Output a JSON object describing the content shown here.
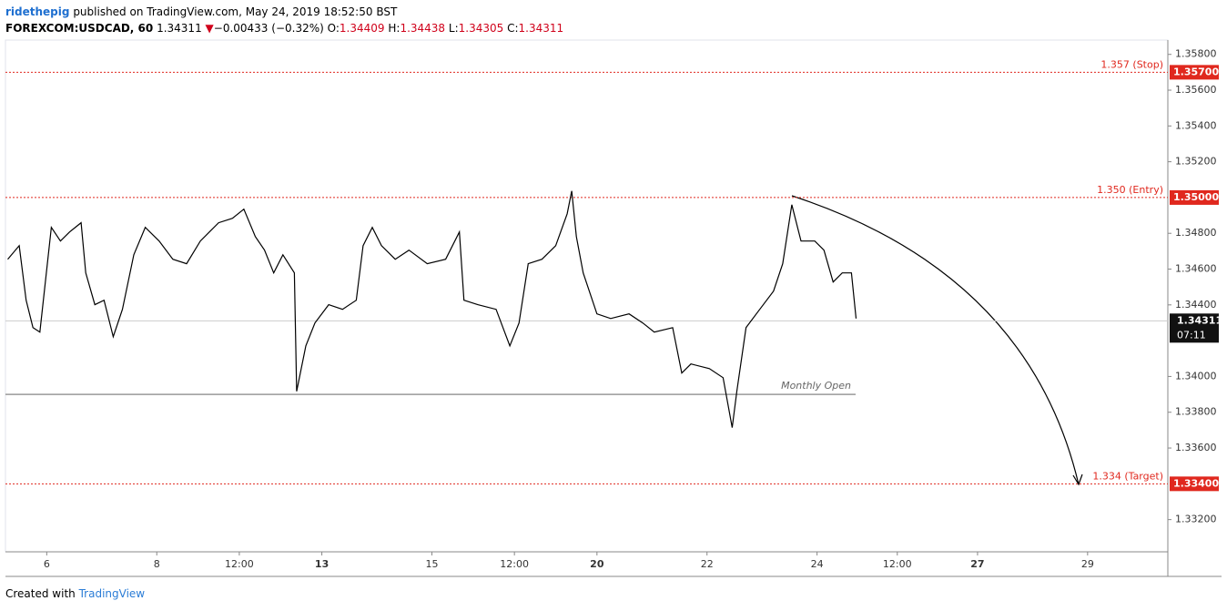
{
  "header": {
    "author": "ridethepig",
    "published": "published on TradingView.com, May 24, 2019 18:52:50 BST"
  },
  "footer": {
    "created": "Created with",
    "brand": "TradingView"
  },
  "chart_data": {
    "type": "line",
    "symbol": "FOREXCOM:USDCAD, 60",
    "last": 1.34311,
    "direction": "▼",
    "change": "−0.00433 (−0.32%)",
    "ohlc": [
      {
        "key": "O:",
        "value": "1.34409"
      },
      {
        "key": "H:",
        "value": "1.34438"
      },
      {
        "key": "L:",
        "value": "1.34305"
      },
      {
        "key": "C:",
        "value": "1.34311"
      }
    ],
    "countdown": "07:11",
    "color": "#000000",
    "x": [
      -17,
      -12,
      -9,
      -6,
      -3,
      2,
      6,
      10,
      15,
      17,
      21,
      25,
      29,
      33,
      38,
      43,
      49,
      55,
      61,
      67,
      75,
      81,
      86,
      91,
      95,
      99,
      103,
      108,
      109,
      113,
      117,
      123,
      129,
      135,
      138,
      142,
      146,
      152,
      158,
      166,
      174,
      180,
      182,
      188,
      196,
      202,
      206,
      210,
      216,
      222,
      227,
      229,
      231,
      234,
      240,
      246,
      254,
      260,
      265,
      273,
      277,
      281,
      289,
      295,
      299,
      301,
      305,
      311,
      317,
      321,
      325,
      329,
      335,
      339,
      343,
      347,
      351,
      353
    ],
    "values": [
      1.34655,
      1.34731,
      1.34426,
      1.34273,
      1.34248,
      1.34833,
      1.34757,
      1.34808,
      1.34859,
      1.34579,
      1.34401,
      1.34426,
      1.34222,
      1.34375,
      1.3468,
      1.34833,
      1.34757,
      1.34655,
      1.3463,
      1.34757,
      1.34859,
      1.34884,
      1.34935,
      1.34782,
      1.34706,
      1.34579,
      1.3468,
      1.34579,
      1.33917,
      1.34171,
      1.34299,
      1.34401,
      1.34375,
      1.34426,
      1.34731,
      1.34833,
      1.34731,
      1.34655,
      1.34706,
      1.3463,
      1.34655,
      1.34808,
      1.34426,
      1.34401,
      1.34375,
      1.34171,
      1.34299,
      1.3463,
      1.34655,
      1.34731,
      1.34909,
      1.35037,
      1.34782,
      1.34579,
      1.3435,
      1.34324,
      1.3435,
      1.34299,
      1.34248,
      1.34273,
      1.34019,
      1.3407,
      1.34044,
      1.33993,
      1.33714,
      1.33917,
      1.34273,
      1.34375,
      1.34477,
      1.3463,
      1.3496,
      1.34757,
      1.34757,
      1.34706,
      1.34528,
      1.34579,
      1.34579,
      1.34324
    ],
    "levels": [
      {
        "value": 1.357,
        "label": "1.357 (Stop)",
        "tag": "1.35700"
      },
      {
        "value": 1.35,
        "label": "1.350 (Entry)",
        "tag": "1.35000"
      },
      {
        "value": 1.334,
        "label": "1.334 (Target)",
        "tag": "1.33400"
      }
    ],
    "monthly_open": {
      "value": 1.339,
      "label": "Monthly Open"
    },
    "xlim": [
      -18,
      489
    ],
    "ylim": [
      1.3302,
      1.3588
    ],
    "xticks": [
      {
        "value": 0,
        "label": "6"
      },
      {
        "value": 48,
        "label": "8"
      },
      {
        "value": 84,
        "label": "12:00"
      },
      {
        "value": 120,
        "label": "13"
      },
      {
        "value": 168,
        "label": "15"
      },
      {
        "value": 204,
        "label": "12:00"
      },
      {
        "value": 240,
        "label": "20"
      },
      {
        "value": 288,
        "label": "22"
      },
      {
        "value": 336,
        "label": "24"
      },
      {
        "value": 371,
        "label": "12:00"
      },
      {
        "value": 406,
        "label": "27"
      },
      {
        "value": 454,
        "label": "29"
      }
    ],
    "yticks": [
      {
        "value": 1.358,
        "label": "1.35800"
      },
      {
        "value": 1.356,
        "label": "1.35600"
      },
      {
        "value": 1.354,
        "label": "1.35400"
      },
      {
        "value": 1.352,
        "label": "1.35200"
      },
      {
        "value": 1.348,
        "label": "1.34800"
      },
      {
        "value": 1.346,
        "label": "1.34600"
      },
      {
        "value": 1.344,
        "label": "1.34400"
      },
      {
        "value": 1.34,
        "label": "1.34000"
      },
      {
        "value": 1.338,
        "label": "1.33800"
      },
      {
        "value": 1.336,
        "label": "1.33600"
      },
      {
        "value": 1.332,
        "label": "1.33200"
      }
    ]
  }
}
